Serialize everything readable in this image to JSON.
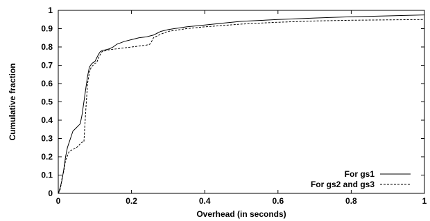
{
  "chart_data": {
    "type": "line",
    "title": "",
    "xlabel": "Overhead (in seconds)",
    "ylabel": "Cumulative fraction",
    "xlim": [
      0,
      1
    ],
    "ylim": [
      0,
      1
    ],
    "xticks": [
      0,
      0.2,
      0.4,
      0.6,
      0.8,
      1
    ],
    "xtick_labels": [
      "0",
      "0.2",
      "0.4",
      "0.6",
      "0.8",
      "1"
    ],
    "yticks": [
      0,
      0.1,
      0.2,
      0.3,
      0.4,
      0.5,
      0.6,
      0.7,
      0.8,
      0.9,
      1
    ],
    "ytick_labels": [
      "0",
      "0.1",
      "0.2",
      "0.3",
      "0.4",
      "0.5",
      "0.6",
      "0.7",
      "0.8",
      "0.9",
      "1"
    ],
    "grid": false,
    "legend_position": "bottom-right",
    "series": [
      {
        "name": "For gs1",
        "style": "solid",
        "color": "#000000",
        "x": [
          0,
          0.005,
          0.01,
          0.015,
          0.02,
          0.025,
          0.03,
          0.035,
          0.04,
          0.045,
          0.05,
          0.055,
          0.06,
          0.065,
          0.07,
          0.075,
          0.08,
          0.085,
          0.09,
          0.095,
          0.1,
          0.105,
          0.11,
          0.115,
          0.12,
          0.13,
          0.14,
          0.15,
          0.16,
          0.18,
          0.2,
          0.22,
          0.24,
          0.25,
          0.26,
          0.27,
          0.28,
          0.3,
          0.35,
          0.4,
          0.45,
          0.5,
          0.6,
          0.7,
          0.8,
          0.9,
          1.0
        ],
        "y": [
          0,
          0.03,
          0.07,
          0.13,
          0.2,
          0.25,
          0.28,
          0.31,
          0.34,
          0.35,
          0.36,
          0.37,
          0.38,
          0.43,
          0.5,
          0.57,
          0.64,
          0.69,
          0.705,
          0.715,
          0.72,
          0.74,
          0.76,
          0.775,
          0.78,
          0.785,
          0.79,
          0.8,
          0.815,
          0.83,
          0.84,
          0.85,
          0.855,
          0.86,
          0.865,
          0.875,
          0.885,
          0.895,
          0.91,
          0.92,
          0.93,
          0.94,
          0.95,
          0.958,
          0.965,
          0.97,
          0.975
        ]
      },
      {
        "name": "For gs2 and gs3",
        "style": "dashed",
        "color": "#000000",
        "x": [
          0,
          0.003,
          0.005,
          0.008,
          0.01,
          0.015,
          0.02,
          0.03,
          0.04,
          0.05,
          0.06,
          0.065,
          0.07,
          0.075,
          0.08,
          0.085,
          0.09,
          0.1,
          0.105,
          0.11,
          0.115,
          0.12,
          0.13,
          0.14,
          0.16,
          0.2,
          0.24,
          0.25,
          0.255,
          0.26,
          0.27,
          0.28,
          0.3,
          0.35,
          0.4,
          0.5,
          0.6,
          0.7,
          0.8,
          0.9,
          1.0
        ],
        "y": [
          0,
          0.01,
          0.02,
          0.05,
          0.08,
          0.12,
          0.18,
          0.23,
          0.24,
          0.25,
          0.27,
          0.28,
          0.28,
          0.45,
          0.6,
          0.66,
          0.69,
          0.71,
          0.715,
          0.74,
          0.76,
          0.775,
          0.78,
          0.785,
          0.79,
          0.8,
          0.81,
          0.815,
          0.83,
          0.85,
          0.86,
          0.87,
          0.885,
          0.9,
          0.91,
          0.925,
          0.935,
          0.942,
          0.946,
          0.948,
          0.95
        ]
      }
    ]
  }
}
